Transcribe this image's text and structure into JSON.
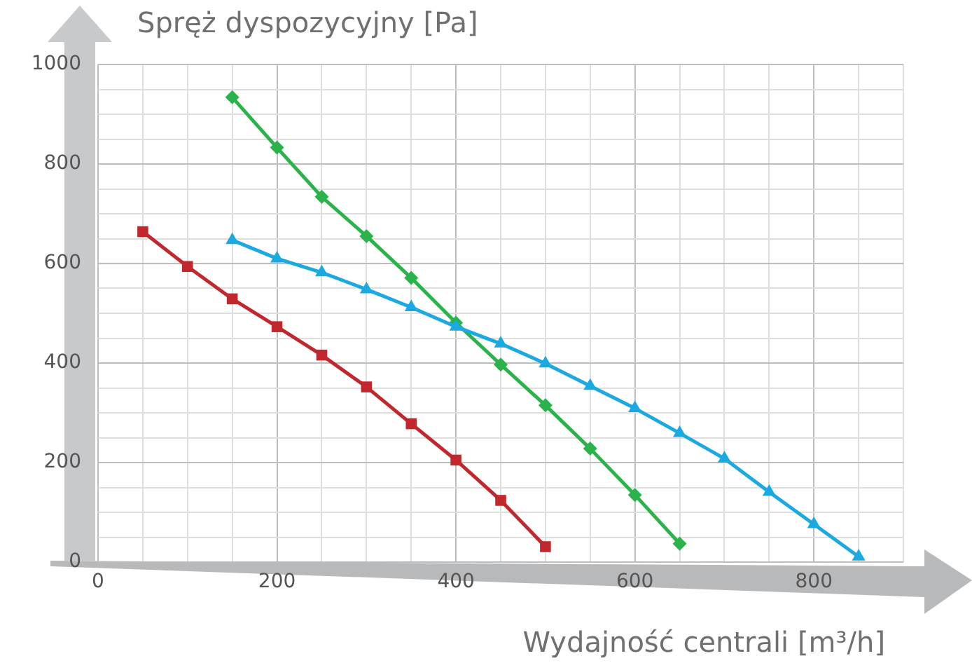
{
  "chart_data": {
    "type": "line",
    "xlabel": "Wydajność centrali [m³/h]",
    "ylabel": "Spręż dyspozycyjny [Pa]",
    "xlim": [
      0,
      900
    ],
    "ylim": [
      0,
      1000
    ],
    "xticks": [
      0,
      {
        "value": 50,
        "label": null
      },
      {
        "value": 100,
        "label": null
      },
      {
        "value": 150,
        "label": null
      },
      200,
      {
        "value": 250,
        "label": null
      },
      {
        "value": 300,
        "label": null
      },
      {
        "value": 350,
        "label": null
      },
      400,
      {
        "value": 450,
        "label": null
      },
      {
        "value": 500,
        "label": null
      },
      {
        "value": 550,
        "label": null
      },
      600,
      {
        "value": 650,
        "label": null
      },
      {
        "value": 700,
        "label": null
      },
      {
        "value": 750,
        "label": null
      },
      800,
      {
        "value": 850,
        "label": null
      },
      {
        "value": 900,
        "label": null
      }
    ],
    "yticks": [
      0,
      {
        "value": 50,
        "label": null
      },
      {
        "value": 100,
        "label": null
      },
      {
        "value": 150,
        "label": null
      },
      200,
      {
        "value": 250,
        "label": null
      },
      {
        "value": 300,
        "label": null
      },
      {
        "value": 350,
        "label": null
      },
      400,
      {
        "value": 450,
        "label": null
      },
      {
        "value": 500,
        "label": null
      },
      {
        "value": 550,
        "label": null
      },
      600,
      {
        "value": 650,
        "label": null
      },
      {
        "value": 700,
        "label": null
      },
      {
        "value": 750,
        "label": null
      },
      800,
      {
        "value": 850,
        "label": null
      },
      {
        "value": 900,
        "label": null
      },
      {
        "value": 950,
        "label": null
      },
      1000
    ],
    "grid": true,
    "line_style": "solid",
    "series": [
      {
        "color": "#c1272d",
        "marker": "square",
        "x": [
          50,
          100,
          150,
          200,
          250,
          300,
          350,
          400,
          450,
          500
        ],
        "values": [
          664,
          594,
          529,
          473,
          416,
          352,
          278,
          205,
          124,
          31
        ]
      },
      {
        "color": "#2ab34a",
        "marker": "diamond",
        "x": [
          150,
          200,
          250,
          300,
          350,
          400,
          450,
          500,
          550,
          600,
          650
        ],
        "values": [
          934,
          833,
          734,
          655,
          571,
          481,
          397,
          315,
          228,
          135,
          37
        ]
      },
      {
        "color": "#1ba9e1",
        "marker": "triangle",
        "x": [
          150,
          200,
          250,
          300,
          350,
          400,
          450,
          500,
          550,
          600,
          650,
          700,
          750,
          800,
          850
        ],
        "values": [
          647,
          610,
          582,
          548,
          512,
          473,
          439,
          399,
          354,
          309,
          259,
          208,
          141,
          76,
          11
        ]
      }
    ]
  }
}
